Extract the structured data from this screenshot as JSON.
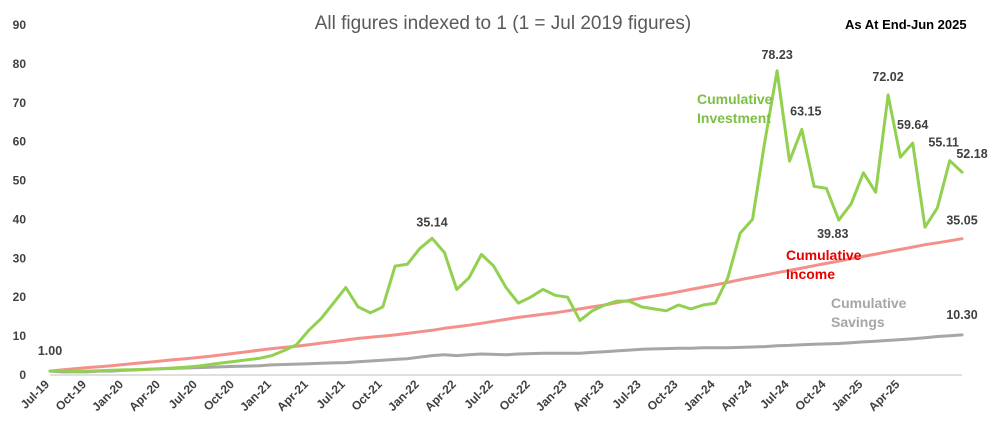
{
  "chart_data": {
    "type": "line",
    "title": "All figures indexed to 1 (1 = Jul 2019 figures)",
    "annotation": "As At End-Jun 2025",
    "xlabel": "",
    "ylabel": "",
    "ylim": [
      0,
      90
    ],
    "yticks": [
      0,
      10,
      20,
      30,
      40,
      50,
      60,
      70,
      80,
      90
    ],
    "grid": false,
    "legend": "inline labels",
    "x_start": "Jul-19",
    "x_end": "Jun-25",
    "xtick_labels": [
      "Jul-19",
      "Oct-19",
      "Jan-20",
      "Apr-20",
      "Jul-20",
      "Oct-20",
      "Jan-21",
      "Apr-21",
      "Jul-21",
      "Oct-21",
      "Jan-22",
      "Apr-22",
      "Jul-22",
      "Oct-22",
      "Jan-23",
      "Apr-23",
      "Jul-23",
      "Oct-23",
      "Jan-24",
      "Apr-24",
      "Jul-24",
      "Oct-24",
      "Jan-25",
      "Apr-25"
    ],
    "series": [
      {
        "name": "Cumulative Investment",
        "color": "#92d050",
        "values": [
          1.0,
          1.1,
          0.9,
          1.0,
          1.1,
          1.2,
          1.3,
          1.4,
          1.5,
          1.6,
          1.8,
          2.0,
          2.3,
          2.7,
          3.1,
          3.5,
          3.9,
          4.3,
          5.0,
          6.3,
          7.8,
          11.5,
          14.5,
          18.5,
          22.5,
          17.5,
          16.0,
          17.5,
          28.0,
          28.5,
          32.5,
          35.14,
          31.5,
          22.0,
          25.0,
          31.0,
          28.0,
          22.5,
          18.5,
          20.0,
          22.0,
          20.5,
          20.0,
          14.0,
          16.5,
          18.0,
          19.0,
          19.0,
          17.5,
          17.0,
          16.5,
          18.0,
          17.0,
          18.0,
          18.5,
          25.0,
          36.5,
          40.0,
          60.0,
          78.23,
          55.0,
          63.15,
          48.5,
          48.0,
          39.83,
          44.0,
          52.0,
          47.0,
          72.02,
          56.0,
          59.64,
          38.0,
          43.0,
          55.11,
          52.18
        ]
      },
      {
        "name": "Cumulative Income",
        "color": "#f4908c",
        "values": [
          1.0,
          1.3,
          1.6,
          1.9,
          2.1,
          2.4,
          2.7,
          3.0,
          3.3,
          3.6,
          3.9,
          4.2,
          4.5,
          4.8,
          5.2,
          5.6,
          6.0,
          6.4,
          6.8,
          7.1,
          7.4,
          7.8,
          8.2,
          8.6,
          9.0,
          9.4,
          9.7,
          10.0,
          10.3,
          10.7,
          11.1,
          11.5,
          12.0,
          12.4,
          12.8,
          13.3,
          13.8,
          14.3,
          14.8,
          15.2,
          15.6,
          16.0,
          16.5,
          17.0,
          17.5,
          18.0,
          18.6,
          19.2,
          19.8,
          20.3,
          20.8,
          21.4,
          22.0,
          22.6,
          23.2,
          23.8,
          24.5,
          25.1,
          25.7,
          26.3,
          26.9,
          27.5,
          28.1,
          28.7,
          29.3,
          29.9,
          30.5,
          31.1,
          31.7,
          32.3,
          32.9,
          33.5,
          34.0,
          34.5,
          35.05
        ]
      },
      {
        "name": "Cumulative Savings",
        "color": "#a6a6a6",
        "values": [
          1.0,
          0.8,
          0.8,
          0.8,
          1.0,
          1.0,
          1.2,
          1.3,
          1.5,
          1.6,
          1.7,
          1.8,
          1.9,
          2.0,
          2.1,
          2.2,
          2.3,
          2.4,
          2.6,
          2.7,
          2.8,
          2.9,
          3.0,
          3.1,
          3.2,
          3.4,
          3.6,
          3.8,
          4.0,
          4.2,
          4.6,
          5.0,
          5.2,
          5.0,
          5.2,
          5.4,
          5.3,
          5.2,
          5.4,
          5.5,
          5.6,
          5.6,
          5.6,
          5.6,
          5.8,
          6.0,
          6.2,
          6.4,
          6.6,
          6.7,
          6.8,
          6.9,
          6.9,
          7.0,
          7.0,
          7.0,
          7.1,
          7.2,
          7.3,
          7.5,
          7.6,
          7.8,
          7.9,
          8.0,
          8.1,
          8.3,
          8.5,
          8.7,
          8.9,
          9.1,
          9.3,
          9.6,
          9.9,
          10.1,
          10.3
        ]
      }
    ],
    "data_labels": [
      {
        "index": 0,
        "series": 0,
        "text": "1.00"
      },
      {
        "index": 31,
        "series": 0,
        "text": "35.14"
      },
      {
        "index": 59,
        "series": 0,
        "text": "78.23"
      },
      {
        "index": 61,
        "series": 0,
        "text": "63.15"
      },
      {
        "index": 64,
        "series": 0,
        "text": "39.83"
      },
      {
        "index": 68,
        "series": 0,
        "text": "72.02"
      },
      {
        "index": 70,
        "series": 0,
        "text": "59.64"
      },
      {
        "index": 73,
        "series": 0,
        "text": "55.11"
      },
      {
        "index": 74,
        "series": 0,
        "text": "52.18"
      },
      {
        "index": 74,
        "series": 1,
        "text": "35.05"
      },
      {
        "index": 74,
        "series": 2,
        "text": "10.30"
      }
    ],
    "series_labels": [
      {
        "lines": [
          "Cumulative",
          "Investment"
        ],
        "color": "#7cc043"
      },
      {
        "lines": [
          "Cumulative",
          "Income"
        ],
        "color": "#e60000"
      },
      {
        "lines": [
          "Cumulative",
          "Savings"
        ],
        "color": "#a6a6a6"
      }
    ]
  }
}
